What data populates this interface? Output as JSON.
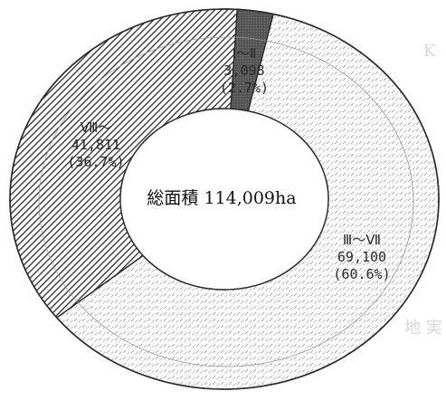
{
  "chart_data": {
    "type": "pie",
    "variant": "donut",
    "center_label": "総面積 114,009ha",
    "categories": [
      "Ⅰ～Ⅱ",
      "Ⅲ～Ⅶ",
      "Ⅷ～"
    ],
    "values": [
      3098,
      69100,
      41811
    ],
    "value_labels": [
      "3,098",
      "69,100",
      "41,811"
    ],
    "percent_labels": [
      "(2.7%)",
      "(60.6%)",
      "(36.7%)"
    ],
    "fills": [
      "dark-gray",
      "white-dotted-diagonal",
      "dense-diagonal-hatch"
    ],
    "colors": {
      "ink": "#2a2a2a",
      "dark": "#4a4a4a",
      "light": "#fafafa"
    }
  }
}
